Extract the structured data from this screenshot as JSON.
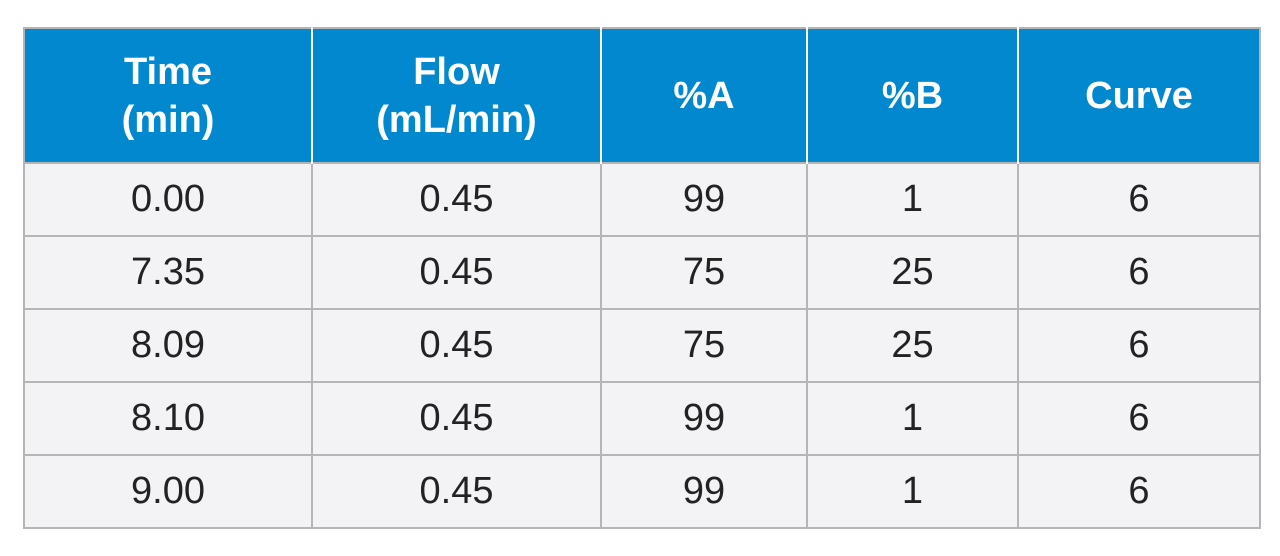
{
  "table": {
    "headers": [
      {
        "lines": [
          "Time",
          "(min)"
        ]
      },
      {
        "lines": [
          "Flow",
          "(mL/min)"
        ]
      },
      {
        "lines": [
          "%A"
        ]
      },
      {
        "lines": [
          "%B"
        ]
      },
      {
        "lines": [
          "Curve"
        ]
      }
    ],
    "rows": [
      [
        "0.00",
        "0.45",
        "99",
        "1",
        "6"
      ],
      [
        "7.35",
        "0.45",
        "75",
        "25",
        "6"
      ],
      [
        "8.09",
        "0.45",
        "75",
        "25",
        "6"
      ],
      [
        "8.10",
        "0.45",
        "99",
        "1",
        "6"
      ],
      [
        "9.00",
        "0.45",
        "99",
        "1",
        "6"
      ]
    ]
  },
  "colors": {
    "header_bg": "#0288cf",
    "header_text": "#ffffff",
    "row_bg": "#f3f2f5",
    "border": "#b5b5b5"
  }
}
